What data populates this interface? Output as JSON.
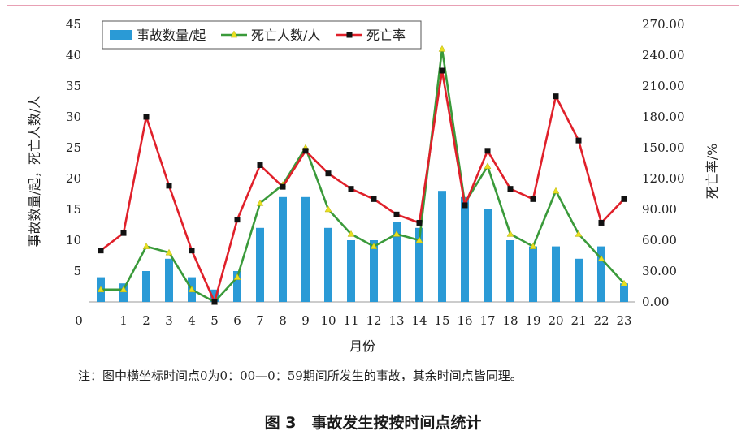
{
  "chart_data": {
    "type": "bar-line",
    "x_label": "月份",
    "categories": [
      "0",
      "1",
      "2",
      "3",
      "4",
      "5",
      "6",
      "7",
      "8",
      "9",
      "10",
      "11",
      "12",
      "13",
      "14",
      "15",
      "16",
      "17",
      "18",
      "19",
      "20",
      "21",
      "22",
      "23"
    ],
    "x_tick_labels": [
      "1",
      "2",
      "3",
      "4",
      "5",
      "6",
      "7",
      "8",
      "9",
      "10",
      "11",
      "12",
      "13",
      "14",
      "15",
      "16",
      "17",
      "18",
      "19",
      "20",
      "21",
      "22",
      "23"
    ],
    "x_origin_label": "0",
    "y_left": {
      "label": "事故数量/起，死亡人数/人",
      "min": 0,
      "max": 45,
      "ticks": [
        "5",
        "10",
        "15",
        "20",
        "25",
        "30",
        "35",
        "40",
        "45"
      ]
    },
    "y_right": {
      "label": "死亡率/%",
      "min": 0,
      "max": 270,
      "ticks": [
        "0.00",
        "30.00",
        "60.00",
        "90.00",
        "120.00",
        "150.00",
        "180.00",
        "210.00",
        "240.00",
        "270.00"
      ]
    },
    "legend_position": "top-left",
    "series": [
      {
        "name": "事故数量/起",
        "type": "bar",
        "axis": "left",
        "color": "#2a9ad6",
        "values": [
          4,
          3,
          5,
          7,
          4,
          2,
          5,
          12,
          17,
          17,
          12,
          10,
          10,
          13,
          12,
          18,
          17,
          15,
          10,
          9,
          9,
          7,
          9,
          3
        ]
      },
      {
        "name": "死亡人数/人",
        "type": "line",
        "axis": "left",
        "color": "#3a9a3a",
        "marker_color": "#e8e020",
        "values": [
          2,
          2,
          9,
          8,
          2,
          0,
          4,
          16,
          19,
          25,
          15,
          11,
          9,
          11,
          10,
          41,
          16,
          22,
          11,
          9,
          18,
          11,
          7,
          3
        ]
      },
      {
        "name": "死亡率",
        "type": "line",
        "axis": "right",
        "color": "#e0202a",
        "marker_color": "#111111",
        "values": [
          50,
          67,
          180,
          113,
          50,
          0,
          80,
          133,
          112,
          147,
          125,
          110,
          100,
          85,
          77,
          225,
          94,
          147,
          110,
          100,
          200,
          157,
          77,
          100
        ]
      }
    ]
  },
  "note": "注：图中横坐标时间点0为0：00—0：59期间所发生的事故，其余时间点皆同理。",
  "caption": "图 3　事故发生按按时间点统计"
}
